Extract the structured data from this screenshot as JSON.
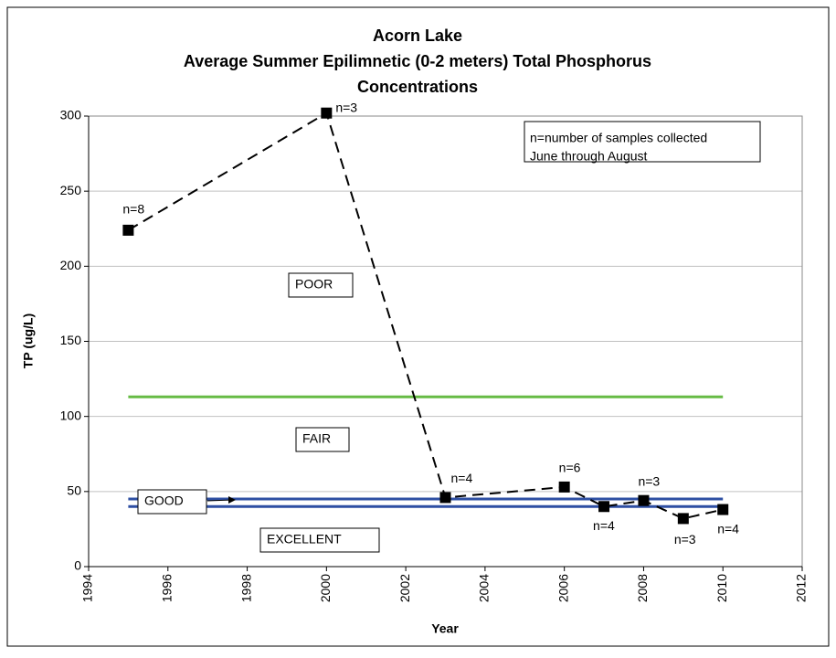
{
  "chart_data": {
    "type": "line",
    "title": [
      "Acorn Lake",
      "Average Summer Epilimnetic (0-2 meters) Total Phosphorus",
      "Concentrations"
    ],
    "x_label": "Year",
    "y_label": "TP (ug/L)",
    "x": [
      1995,
      2000,
      2003,
      2006,
      2007,
      2008,
      2009,
      2010
    ],
    "series": [
      {
        "color": "#000000",
        "values": [
          224,
          302,
          46,
          53,
          40,
          44,
          32,
          38
        ],
        "point_labels": [
          "n=8",
          "n=3",
          "n=4",
          "n=6",
          "n=4",
          "n=3",
          "n=3",
          "n=4"
        ]
      }
    ],
    "xlim": [
      1994,
      2012
    ],
    "xticks": [
      1994,
      1996,
      1998,
      2000,
      2002,
      2004,
      2006,
      2008,
      2010,
      2012
    ],
    "ylim": [
      0,
      300
    ],
    "yticks": [
      0,
      50,
      100,
      150,
      200,
      250,
      300
    ],
    "grid": true,
    "reference_lines": [
      {
        "value": 113,
        "color": "#66bb44",
        "x_start": 1995,
        "x_end": 2010
      },
      {
        "value": 45,
        "color": "#2e4fa3",
        "x_start": 1995,
        "x_end": 2010
      },
      {
        "value": 40,
        "color": "#2e4fa3",
        "x_start": 1995,
        "x_end": 2010
      }
    ],
    "zone_labels": [
      "POOR",
      "FAIR",
      "GOOD",
      "EXCELLENT"
    ],
    "note": [
      "n=number of samples collected",
      "June through August"
    ]
  }
}
